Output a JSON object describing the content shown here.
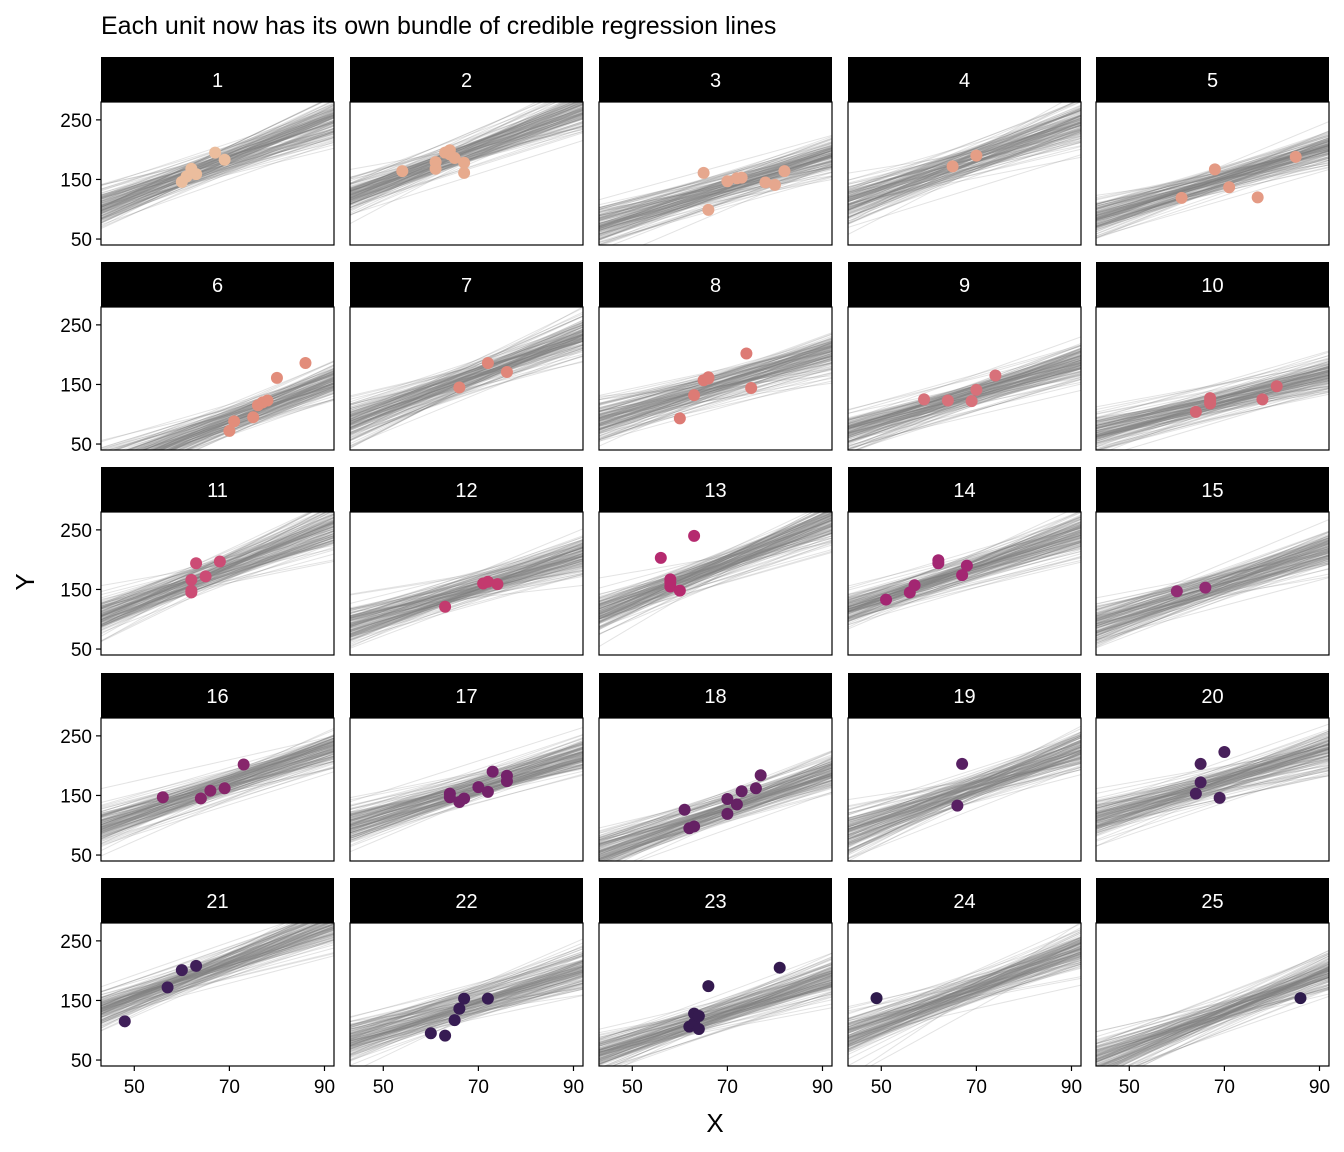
{
  "chart_data": {
    "type": "scatter",
    "title": "Each unit now has its own bundle of credible regression lines",
    "xlabel": "X",
    "ylabel": "Y",
    "xlim": [
      43,
      92
    ],
    "ylim": [
      40,
      280
    ],
    "xticks": [
      "50",
      "70",
      "90"
    ],
    "yticks": [
      "50",
      "150",
      "250"
    ],
    "grid": false,
    "facets": [
      {
        "label": "1",
        "color": "#ebbd9d",
        "center": [
          64,
          165
        ],
        "spread": [
          3.0,
          0.6
        ],
        "points": [
          [
            60,
            146
          ],
          [
            61,
            155
          ],
          [
            62,
            168
          ],
          [
            62,
            162
          ],
          [
            63,
            159
          ],
          [
            67,
            195
          ],
          [
            69,
            183
          ]
        ]
      },
      {
        "label": "2",
        "color": "#e7aa8d",
        "center": [
          62,
          180
        ],
        "spread": [
          3.0,
          0.5
        ],
        "points": [
          [
            54,
            164
          ],
          [
            61,
            168
          ],
          [
            61,
            179
          ],
          [
            63,
            195
          ],
          [
            64,
            192
          ],
          [
            64,
            199
          ],
          [
            65,
            186
          ],
          [
            67,
            161
          ],
          [
            67,
            178
          ]
        ]
      },
      {
        "label": "3",
        "color": "#e6a78e",
        "center": [
          74,
          145
        ],
        "spread": [
          2.4,
          0.5
        ],
        "points": [
          [
            65,
            161
          ],
          [
            66,
            99
          ],
          [
            70,
            147
          ],
          [
            72,
            152
          ],
          [
            73,
            153
          ],
          [
            78,
            145
          ],
          [
            80,
            141
          ],
          [
            82,
            164
          ]
        ]
      },
      {
        "label": "4",
        "color": "#e59e86",
        "center": [
          68,
          180
        ],
        "spread": [
          2.8,
          0.6
        ],
        "points": [
          [
            65,
            172
          ],
          [
            70,
            190
          ]
        ]
      },
      {
        "label": "5",
        "color": "#e49a84",
        "center": [
          70,
          150
        ],
        "spread": [
          2.4,
          0.5
        ],
        "points": [
          [
            61,
            119
          ],
          [
            68,
            167
          ],
          [
            71,
            137
          ],
          [
            77,
            120
          ],
          [
            85,
            188
          ]
        ]
      },
      {
        "label": "6",
        "color": "#e28d7b",
        "center": [
          75,
          105
        ],
        "spread": [
          3.0,
          0.45
        ],
        "points": [
          [
            70,
            72
          ],
          [
            71,
            88
          ],
          [
            75,
            95
          ],
          [
            76,
            115
          ],
          [
            77,
            120
          ],
          [
            78,
            123
          ],
          [
            80,
            161
          ],
          [
            86,
            186
          ]
        ]
      },
      {
        "label": "7",
        "color": "#e08679",
        "center": [
          68,
          160
        ],
        "spread": [
          3.0,
          0.6
        ],
        "points": [
          [
            66,
            145
          ],
          [
            72,
            186
          ],
          [
            76,
            171
          ]
        ]
      },
      {
        "label": "8",
        "color": "#dd7b75",
        "center": [
          67,
          145
        ],
        "spread": [
          2.4,
          0.5
        ],
        "points": [
          [
            60,
            93
          ],
          [
            63,
            132
          ],
          [
            65,
            157
          ],
          [
            66,
            160
          ],
          [
            66,
            162
          ],
          [
            74,
            202
          ],
          [
            75,
            144
          ]
        ]
      },
      {
        "label": "9",
        "color": "#d8717a",
        "center": [
          68,
          130
        ],
        "spread": [
          2.4,
          0.45
        ],
        "points": [
          [
            59,
            125
          ],
          [
            64,
            123
          ],
          [
            69,
            122
          ],
          [
            70,
            141
          ],
          [
            74,
            165
          ]
        ]
      },
      {
        "label": "10",
        "color": "#d36573",
        "center": [
          72,
          125
        ],
        "spread": [
          2.0,
          0.4
        ],
        "points": [
          [
            64,
            104
          ],
          [
            67,
            122
          ],
          [
            67,
            127
          ],
          [
            67,
            118
          ],
          [
            78,
            125
          ],
          [
            81,
            147
          ]
        ]
      },
      {
        "label": "11",
        "color": "#cc4c75",
        "center": [
          64,
          170
        ],
        "spread": [
          3.0,
          0.6
        ],
        "points": [
          [
            62,
            145
          ],
          [
            62,
            148
          ],
          [
            62,
            166
          ],
          [
            63,
            194
          ],
          [
            65,
            172
          ],
          [
            68,
            197
          ]
        ]
      },
      {
        "label": "12",
        "color": "#c33a6e",
        "center": [
          70,
          155
        ],
        "spread": [
          2.4,
          0.5
        ],
        "points": [
          [
            63,
            121
          ],
          [
            71,
            160
          ],
          [
            72,
            163
          ],
          [
            74,
            159
          ]
        ]
      },
      {
        "label": "13",
        "color": "#b52a6f",
        "center": [
          62,
          170
        ],
        "spread": [
          3.2,
          0.6
        ],
        "points": [
          [
            56,
            203
          ],
          [
            58,
            155
          ],
          [
            58,
            167
          ],
          [
            58,
            162
          ],
          [
            60,
            148
          ],
          [
            63,
            240
          ]
        ]
      },
      {
        "label": "14",
        "color": "#a32672",
        "center": [
          61,
          165
        ],
        "spread": [
          2.6,
          0.5
        ],
        "points": [
          [
            51,
            133
          ],
          [
            56,
            145
          ],
          [
            57,
            157
          ],
          [
            62,
            199
          ],
          [
            62,
            194
          ],
          [
            67,
            174
          ],
          [
            68,
            190
          ]
        ]
      },
      {
        "label": "15",
        "color": "#922c74",
        "center": [
          68,
          155
        ],
        "spread": [
          2.6,
          0.5
        ],
        "points": [
          [
            60,
            147
          ],
          [
            66,
            153
          ]
        ]
      },
      {
        "label": "16",
        "color": "#87266b",
        "center": [
          66,
          160
        ],
        "spread": [
          2.6,
          0.45
        ],
        "points": [
          [
            56,
            147
          ],
          [
            64,
            145
          ],
          [
            66,
            158
          ],
          [
            69,
            162
          ],
          [
            73,
            202
          ]
        ]
      },
      {
        "label": "17",
        "color": "#74226a",
        "center": [
          68,
          160
        ],
        "spread": [
          2.4,
          0.45
        ],
        "points": [
          [
            64,
            153
          ],
          [
            64,
            147
          ],
          [
            66,
            139
          ],
          [
            67,
            145
          ],
          [
            70,
            164
          ],
          [
            72,
            156
          ],
          [
            73,
            190
          ],
          [
            76,
            183
          ],
          [
            76,
            174
          ]
        ]
      },
      {
        "label": "18",
        "color": "#652164",
        "center": [
          70,
          130
        ],
        "spread": [
          2.8,
          0.5
        ],
        "points": [
          [
            61,
            126
          ],
          [
            62,
            95
          ],
          [
            63,
            98
          ],
          [
            70,
            119
          ],
          [
            70,
            144
          ],
          [
            72,
            135
          ],
          [
            73,
            157
          ],
          [
            76,
            162
          ],
          [
            77,
            184
          ]
        ]
      },
      {
        "label": "19",
        "color": "#582063",
        "center": [
          70,
          165
        ],
        "spread": [
          2.8,
          0.6
        ],
        "points": [
          [
            66,
            133
          ],
          [
            67,
            203
          ]
        ]
      },
      {
        "label": "20",
        "color": "#48205b",
        "center": [
          68,
          170
        ],
        "spread": [
          2.4,
          0.55
        ],
        "points": [
          [
            64,
            153
          ],
          [
            65,
            203
          ],
          [
            65,
            172
          ],
          [
            69,
            146
          ],
          [
            70,
            223
          ]
        ]
      },
      {
        "label": "21",
        "color": "#3f1f59",
        "center": [
          58,
          175
        ],
        "spread": [
          3.0,
          0.6
        ],
        "points": [
          [
            48,
            115
          ],
          [
            57,
            172
          ],
          [
            60,
            201
          ],
          [
            63,
            208
          ]
        ]
      },
      {
        "label": "22",
        "color": "#371c53",
        "center": [
          68,
          145
        ],
        "spread": [
          2.4,
          0.5
        ],
        "points": [
          [
            60,
            95
          ],
          [
            63,
            91
          ],
          [
            65,
            117
          ],
          [
            66,
            136
          ],
          [
            67,
            153
          ],
          [
            72,
            153
          ]
        ]
      },
      {
        "label": "23",
        "color": "#341a4f",
        "center": [
          68,
          125
        ],
        "spread": [
          2.6,
          0.5
        ],
        "points": [
          [
            62,
            106
          ],
          [
            63,
            128
          ],
          [
            63,
            112
          ],
          [
            64,
            102
          ],
          [
            64,
            124
          ],
          [
            66,
            174
          ],
          [
            81,
            205
          ]
        ]
      },
      {
        "label": "24",
        "color": "#2f1b4c",
        "center": [
          68,
          165
        ],
        "spread": [
          3.0,
          0.6
        ],
        "points": [
          [
            49,
            154
          ]
        ]
      },
      {
        "label": "25",
        "color": "#2d1a4b",
        "center": [
          72,
          135
        ],
        "spread": [
          3.0,
          0.6
        ],
        "points": [
          [
            86,
            154
          ]
        ]
      }
    ]
  }
}
